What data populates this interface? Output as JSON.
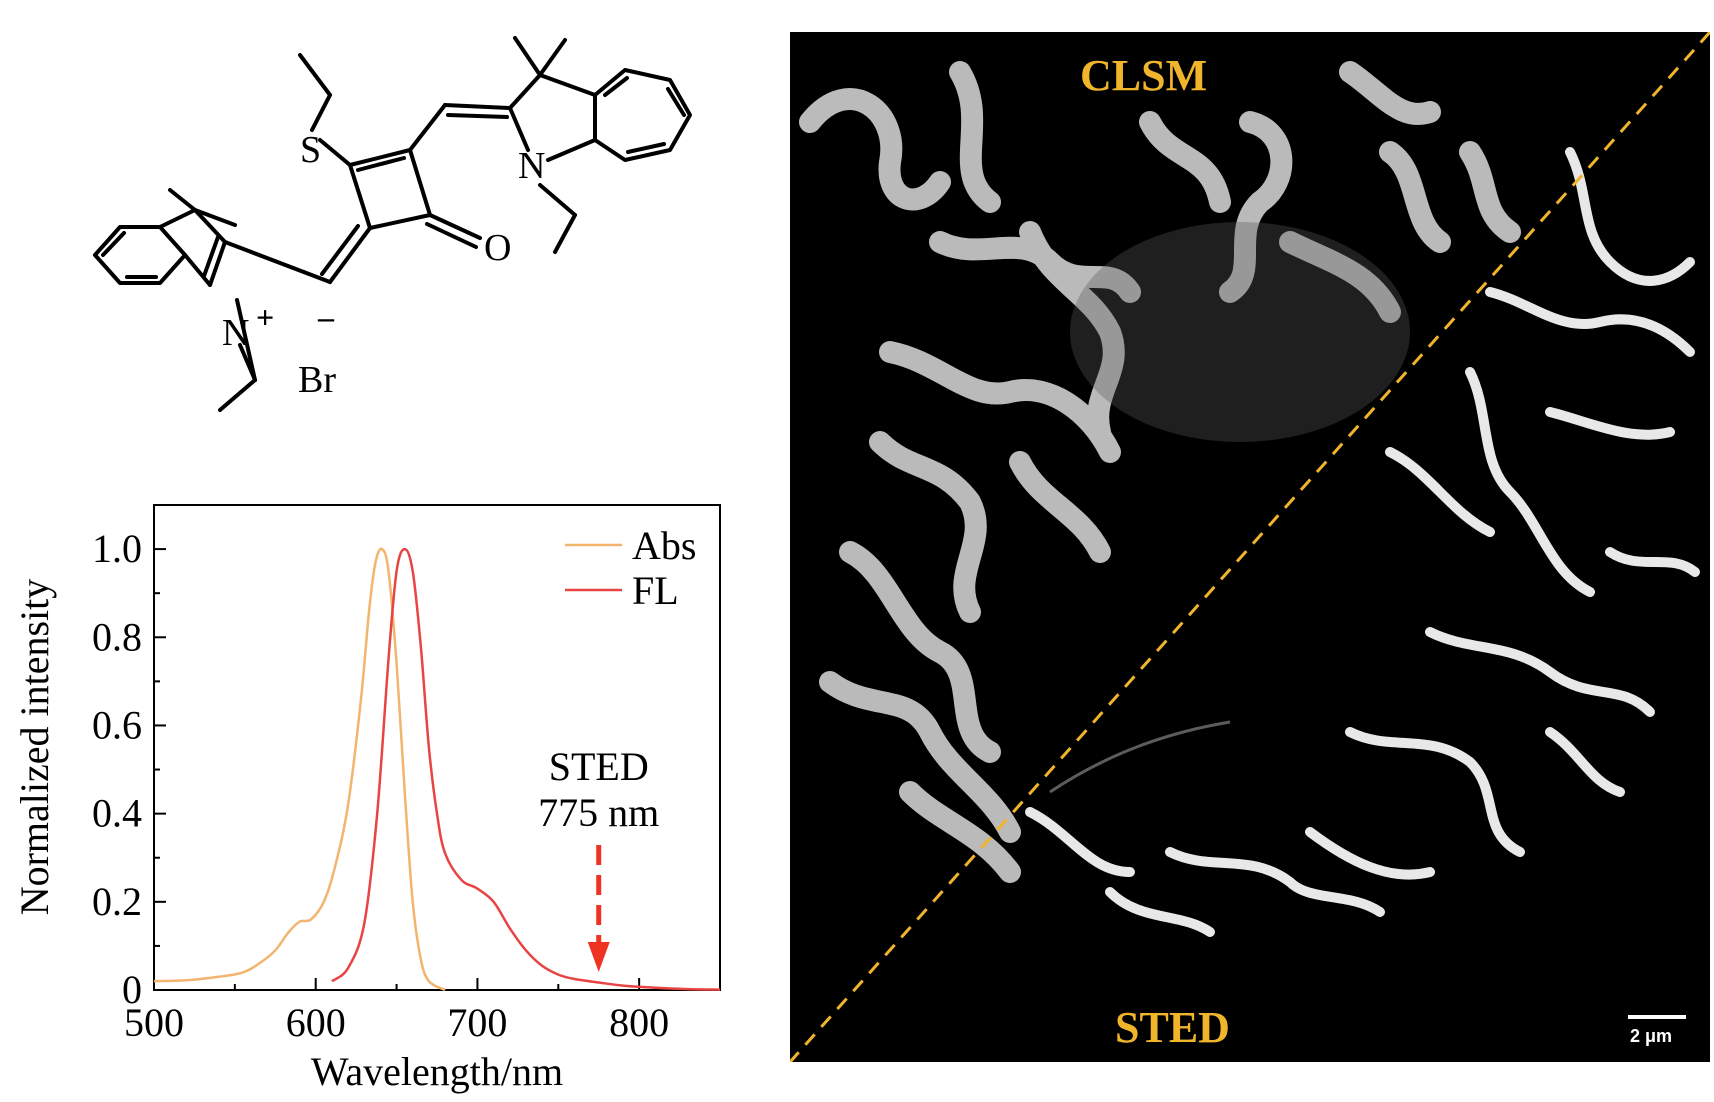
{
  "molecule": {
    "atoms": {
      "sulfur": "S",
      "oxygen": "O",
      "nitrogen_top": "N",
      "nitrogen_bottom": "N",
      "plus_sign": "+",
      "minus_sign": "–",
      "counterion": "Br"
    }
  },
  "chart_data": {
    "type": "line",
    "xlabel": "Wavelength/nm",
    "ylabel": "Normalized intensity",
    "xlim": [
      500,
      850
    ],
    "ylim": [
      0,
      1.1
    ],
    "xticks": [
      500,
      600,
      700,
      800
    ],
    "yticks": [
      0,
      0.2,
      0.4,
      0.6,
      0.8,
      1.0
    ],
    "xtick_labels": [
      "500",
      "600",
      "700",
      "800"
    ],
    "ytick_labels": [
      "0",
      "0.2",
      "0.4",
      "0.6",
      "0.8",
      "1.0"
    ],
    "legend_position": "top-right",
    "grid": false,
    "series": [
      {
        "name": "Abs",
        "color": "#f2b56f",
        "x": [
          500,
          520,
          540,
          555,
          565,
          575,
          583,
          590,
          597,
          605,
          612,
          620,
          628,
          633,
          637,
          641,
          645,
          650,
          655,
          660,
          665,
          670,
          680
        ],
        "y": [
          0.02,
          0.022,
          0.03,
          0.04,
          0.06,
          0.09,
          0.13,
          0.155,
          0.16,
          0.2,
          0.28,
          0.42,
          0.66,
          0.86,
          0.97,
          1.0,
          0.95,
          0.74,
          0.45,
          0.2,
          0.07,
          0.02,
          0.0
        ]
      },
      {
        "name": "FL",
        "color": "#e84444",
        "x": [
          610,
          620,
          630,
          638,
          645,
          650,
          655,
          660,
          665,
          670,
          675,
          680,
          690,
          700,
          710,
          720,
          730,
          740,
          750,
          760,
          775,
          790,
          810,
          830,
          850
        ],
        "y": [
          0.02,
          0.05,
          0.15,
          0.4,
          0.75,
          0.95,
          1.0,
          0.95,
          0.78,
          0.55,
          0.4,
          0.31,
          0.25,
          0.23,
          0.2,
          0.14,
          0.09,
          0.055,
          0.035,
          0.025,
          0.017,
          0.01,
          0.005,
          0.002,
          0.001
        ]
      }
    ],
    "annotation": {
      "line1": "STED",
      "line2": "775 nm",
      "x": 775,
      "color": "#ee3322"
    }
  },
  "micrograph": {
    "top_label": "CLSM",
    "bottom_label": "STED",
    "scale_bar": "2 μm",
    "label_color": "#f1b52b"
  }
}
